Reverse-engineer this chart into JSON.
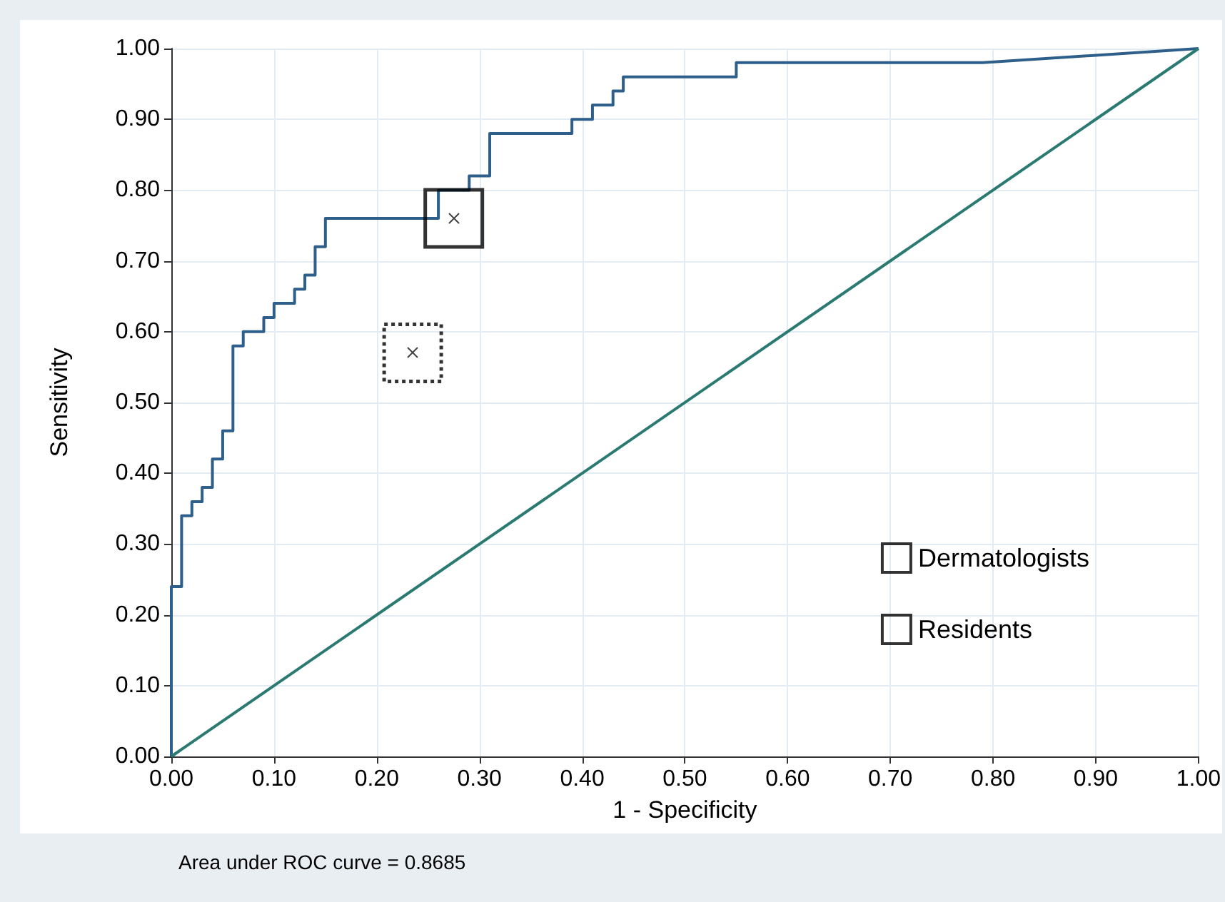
{
  "chart_data": {
    "type": "line",
    "xlabel": "1 - Specificity",
    "ylabel": "Sensitivity",
    "annotations": [
      "Area under ROC curve = 0.8685"
    ],
    "xlim": [
      0,
      1
    ],
    "ylim": [
      0,
      1
    ],
    "xticks": [
      {
        "value": 0,
        "label": "0.00"
      },
      {
        "value": 0.1,
        "label": "0.10"
      },
      {
        "value": 0.2,
        "label": "0.20"
      },
      {
        "value": 0.3,
        "label": "0.30"
      },
      {
        "value": 0.4,
        "label": "0.40"
      },
      {
        "value": 0.5,
        "label": "0.50"
      },
      {
        "value": 0.6,
        "label": "0.60"
      },
      {
        "value": 0.7,
        "label": "0.70"
      },
      {
        "value": 0.8,
        "label": "0.80"
      },
      {
        "value": 0.9,
        "label": "0.90"
      },
      {
        "value": 1,
        "label": "1.00"
      }
    ],
    "yticks": [
      {
        "value": 0,
        "label": "0.00"
      },
      {
        "value": 0.1,
        "label": "0.10"
      },
      {
        "value": 0.2,
        "label": "0.20"
      },
      {
        "value": 0.3,
        "label": "0.30"
      },
      {
        "value": 0.4,
        "label": "0.40"
      },
      {
        "value": 0.5,
        "label": "0.50"
      },
      {
        "value": 0.6,
        "label": "0.60"
      },
      {
        "value": 0.7,
        "label": "0.70"
      },
      {
        "value": 0.8,
        "label": "0.80"
      },
      {
        "value": 0.9,
        "label": "0.90"
      },
      {
        "value": 1,
        "label": "1.00"
      }
    ],
    "grid": true,
    "legend": "right",
    "marker": "none",
    "series": [
      {
        "type": "line",
        "color": "#2e5f8a",
        "x": [
          0,
          0,
          0.01,
          0.01,
          0.02,
          0.02,
          0.03,
          0.03,
          0.04,
          0.04,
          0.05,
          0.05,
          0.06,
          0.06,
          0.07,
          0.07,
          0.09,
          0.09,
          0.1,
          0.1,
          0.12,
          0.12,
          0.13,
          0.13,
          0.14,
          0.14,
          0.15,
          0.15,
          0.26,
          0.26,
          0.29,
          0.29,
          0.31,
          0.31,
          0.39,
          0.39,
          0.41,
          0.41,
          0.43,
          0.43,
          0.44,
          0.44,
          0.55,
          0.55,
          0.79,
          1
        ],
        "values": [
          0,
          0.24,
          0.24,
          0.34,
          0.34,
          0.36,
          0.36,
          0.38,
          0.38,
          0.42,
          0.42,
          0.46,
          0.46,
          0.58,
          0.58,
          0.6,
          0.6,
          0.62,
          0.62,
          0.64,
          0.64,
          0.66,
          0.66,
          0.68,
          0.68,
          0.72,
          0.72,
          0.76,
          0.76,
          0.8,
          0.8,
          0.82,
          0.82,
          0.88,
          0.88,
          0.9,
          0.9,
          0.92,
          0.92,
          0.94,
          0.94,
          0.96,
          0.96,
          0.98,
          0.98,
          1
        ]
      },
      {
        "type": "line",
        "color": "#2a7a72",
        "x": [
          0,
          1
        ],
        "values": [
          0,
          1
        ]
      },
      {
        "type": "scatter",
        "name": "Dermatologists",
        "color": "#000000",
        "marker": "square",
        "line_style": "solid",
        "x": [
          0.275
        ],
        "values": [
          0.76
        ]
      },
      {
        "type": "scatter",
        "name": "Residents",
        "color": "#000000",
        "marker": "square",
        "line_style": "dotted",
        "x": [
          0.235
        ],
        "values": [
          0.57
        ]
      }
    ]
  }
}
